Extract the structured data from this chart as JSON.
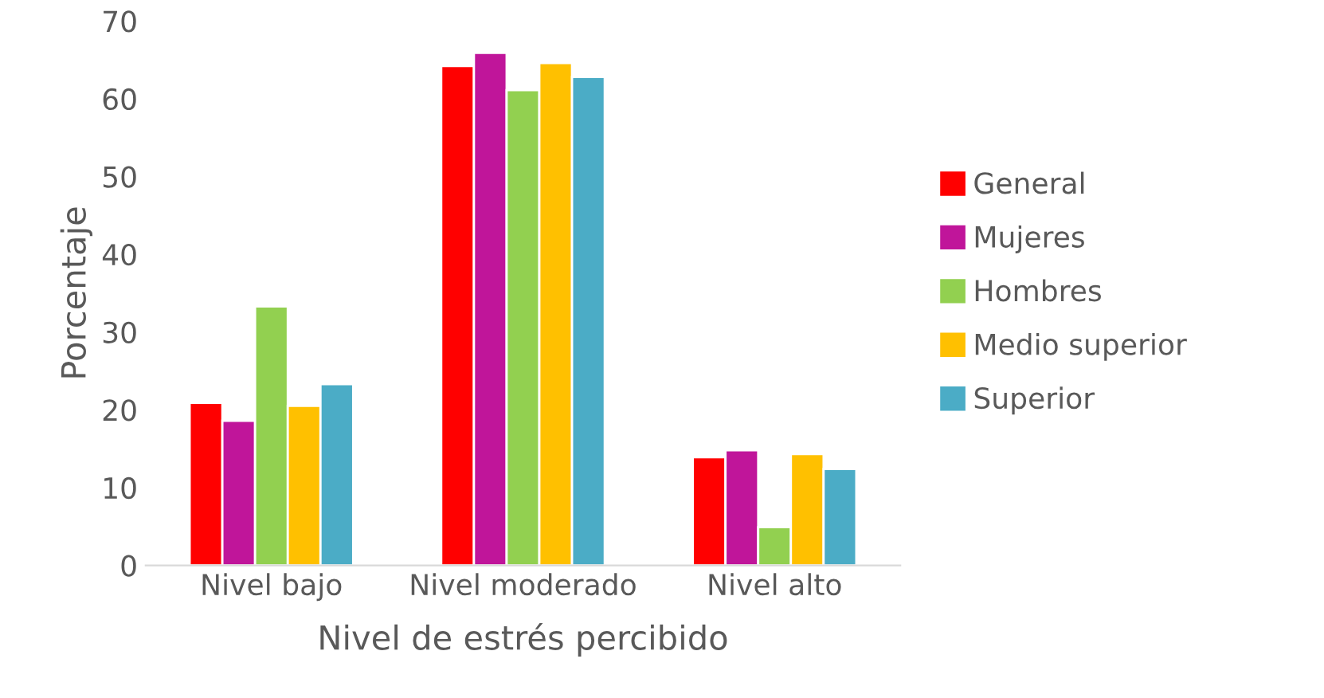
{
  "chart_data": {
    "type": "bar",
    "xlabel": "Nivel de estrés percibido",
    "ylabel": "Porcentaje",
    "categories": [
      "Nivel bajo",
      "Nivel moderado",
      "Nivel alto"
    ],
    "series": [
      {
        "name": "General",
        "color": "#ff0000",
        "values": [
          20.9,
          64.2,
          13.9
        ]
      },
      {
        "name": "Mujeres",
        "color": "#c0159a",
        "values": [
          18.6,
          65.9,
          14.8
        ]
      },
      {
        "name": "Hombres",
        "color": "#92d050",
        "values": [
          33.3,
          61.1,
          4.9
        ]
      },
      {
        "name": "Medio superior",
        "color": "#ffc000",
        "values": [
          20.5,
          64.6,
          14.3
        ]
      },
      {
        "name": "Superior",
        "color": "#4bacc6",
        "values": [
          23.3,
          62.8,
          12.4
        ]
      }
    ],
    "ylim": [
      0,
      70
    ],
    "yticks": [
      0,
      10,
      20,
      30,
      40,
      50,
      60,
      70
    ],
    "grid": false,
    "legend": "right"
  }
}
